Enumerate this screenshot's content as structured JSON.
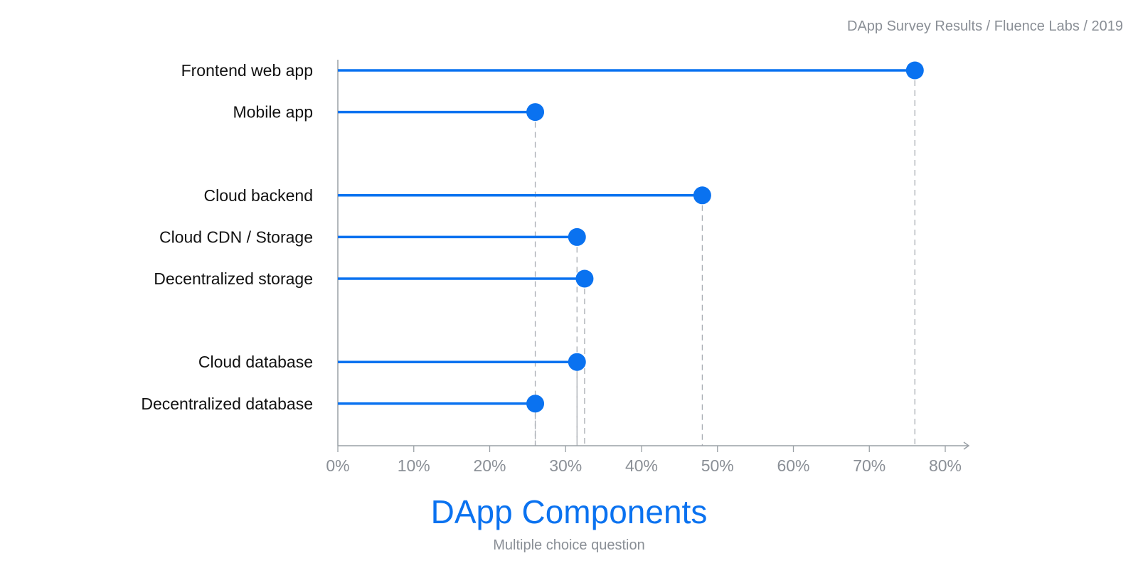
{
  "header": {
    "source": "DApp Survey Results / Fluence Labs / 2019"
  },
  "colors": {
    "accent": "#0a72f0",
    "axis": "#9aa0a6",
    "guide": "#a8adb3",
    "muted": "#8a8f96"
  },
  "chart_data": {
    "type": "lollipop",
    "title": "DApp Components",
    "subtitle": "Multiple choice question",
    "xlabel": "",
    "ylabel": "",
    "xlim": [
      0,
      80
    ],
    "x_ticks": [
      "0%",
      "10%",
      "20%",
      "30%",
      "40%",
      "50%",
      "60%",
      "70%",
      "80%"
    ],
    "groups": [
      {
        "items": [
          {
            "label": "Frontend web app",
            "value": 76
          },
          {
            "label": "Mobile app",
            "value": 26
          }
        ]
      },
      {
        "items": [
          {
            "label": "Cloud backend",
            "value": 48
          },
          {
            "label": "Cloud CDN / Storage",
            "value": 31.5
          },
          {
            "label": "Decentralized storage",
            "value": 32.5
          }
        ]
      },
      {
        "items": [
          {
            "label": "Cloud database",
            "value": 31.5
          },
          {
            "label": "Decentralized database",
            "value": 26
          }
        ]
      }
    ],
    "grid": false,
    "guide_lines": "dashed vertical drop lines from each point to the x-axis"
  }
}
